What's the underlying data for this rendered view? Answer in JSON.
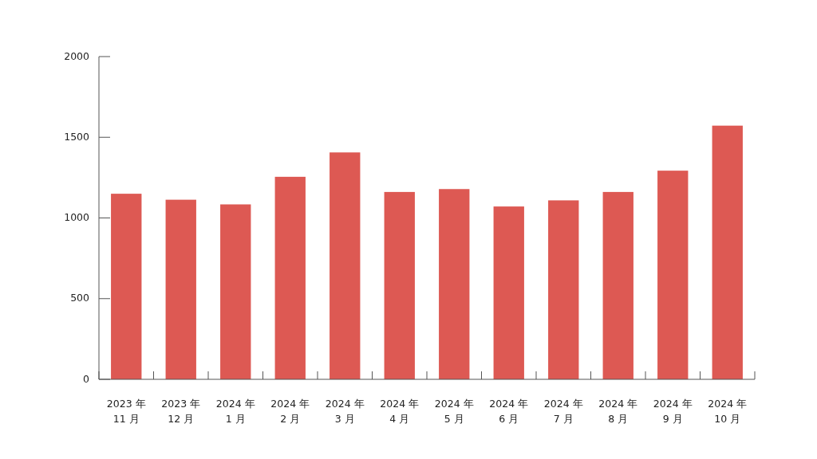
{
  "chart_data": {
    "type": "bar",
    "categories": [
      "2023 年\n11 月",
      "2023 年\n12 月",
      "2024 年\n1 月",
      "2024 年\n2 月",
      "2024 年\n3 月",
      "2024 年\n4 月",
      "2024 年\n5 月",
      "2024 年\n6 月",
      "2024 年\n7 月",
      "2024 年\n8 月",
      "2024 年\n9 月",
      "2024 年\n10 月"
    ],
    "values": [
      1150,
      1113,
      1084,
      1255,
      1406,
      1161,
      1179,
      1071,
      1109,
      1161,
      1293,
      1572
    ],
    "color": "#dd5953",
    "ylim": [
      0,
      2000
    ],
    "yticks": [
      0,
      500,
      1000,
      1500,
      2000
    ],
    "grid": false
  }
}
